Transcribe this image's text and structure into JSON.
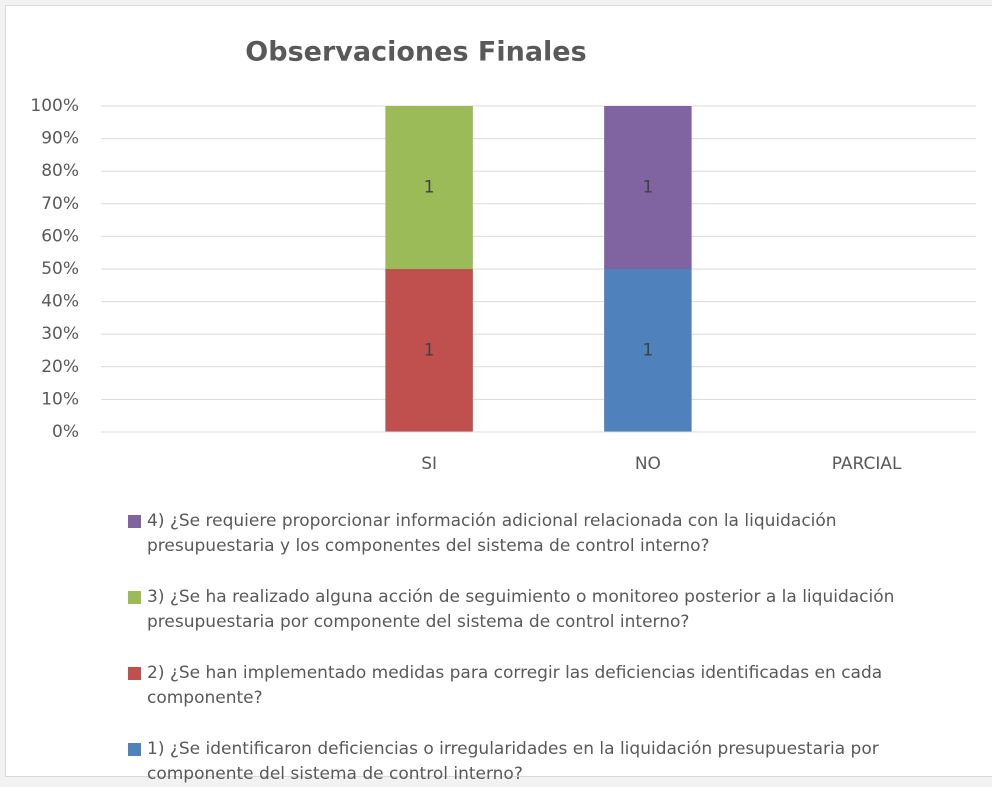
{
  "chart_data": {
    "type": "bar",
    "stacked_percent": true,
    "title": "Observaciones Finales",
    "categories": [
      null,
      "SI",
      "NO",
      "PARCIAL"
    ],
    "series": [
      {
        "name": "1) ¿Se identificaron deficiencias o irregularidades en la liquidación presupuestaria por componente del sistema de control interno?",
        "color": "#4f81bd",
        "values": [
          null,
          null,
          1,
          null
        ]
      },
      {
        "name": "2) ¿Se han implementado medidas para corregir las deficiencias identificadas en cada componente?",
        "color": "#c0504d",
        "values": [
          null,
          1,
          null,
          null
        ]
      },
      {
        "name": "3) ¿Se ha realizado alguna acción de seguimiento o monitoreo posterior a la liquidación presupuestaria por componente del sistema de control interno?",
        "color": "#9bbb59",
        "values": [
          null,
          1,
          null,
          null
        ]
      },
      {
        "name": "4) ¿Se requiere proporcionar información adicional relacionada con la liquidación presupuestaria y los componentes del sistema de control interno?",
        "color": "#8064a2",
        "values": [
          null,
          null,
          1,
          null
        ]
      }
    ],
    "ylim": [
      0,
      100
    ],
    "yticks": [
      {
        "value": 0,
        "label": "0%"
      },
      {
        "value": 10,
        "label": "10%"
      },
      {
        "value": 20,
        "label": "20%"
      },
      {
        "value": 30,
        "label": "30%"
      },
      {
        "value": 40,
        "label": "40%"
      },
      {
        "value": 50,
        "label": "50%"
      },
      {
        "value": 60,
        "label": "60%"
      },
      {
        "value": 70,
        "label": "70%"
      },
      {
        "value": 80,
        "label": "80%"
      },
      {
        "value": 90,
        "label": "90%"
      },
      {
        "value": 100,
        "label": "100%"
      }
    ],
    "grid": true,
    "legend": "bottom",
    "legend_order": "reversed"
  }
}
